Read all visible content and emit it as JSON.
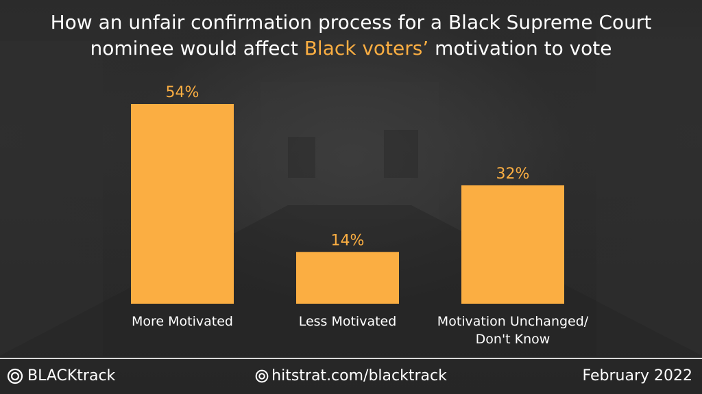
{
  "title": {
    "line1": "How an unfair confirmation process for a Black Supreme Court",
    "line2_pre": "nominee would affect ",
    "line2_highlight": "Black voters’",
    "line2_post": " motivation to vote"
  },
  "colors": {
    "bar": "#fbae42",
    "value_label": "#fbae42",
    "highlight": "#fbae42",
    "text": "#ffffff",
    "background": "#2b2b2b"
  },
  "chart_data": {
    "type": "bar",
    "categories": [
      "More Motivated",
      "Less Motivated",
      "Motivation Unchanged/\nDon't Know"
    ],
    "values": [
      54,
      14,
      32
    ],
    "value_labels": [
      "54%",
      "14%",
      "32%"
    ],
    "unit": "%",
    "ylim": [
      0,
      54
    ],
    "grid": false,
    "legend": "none"
  },
  "footer": {
    "brand": "BLACKtrack",
    "brand_icon": "target-circle-icon",
    "url": "hitstrat.com/blacktrack",
    "url_icon": "at-circle-icon",
    "date": "February 2022"
  }
}
